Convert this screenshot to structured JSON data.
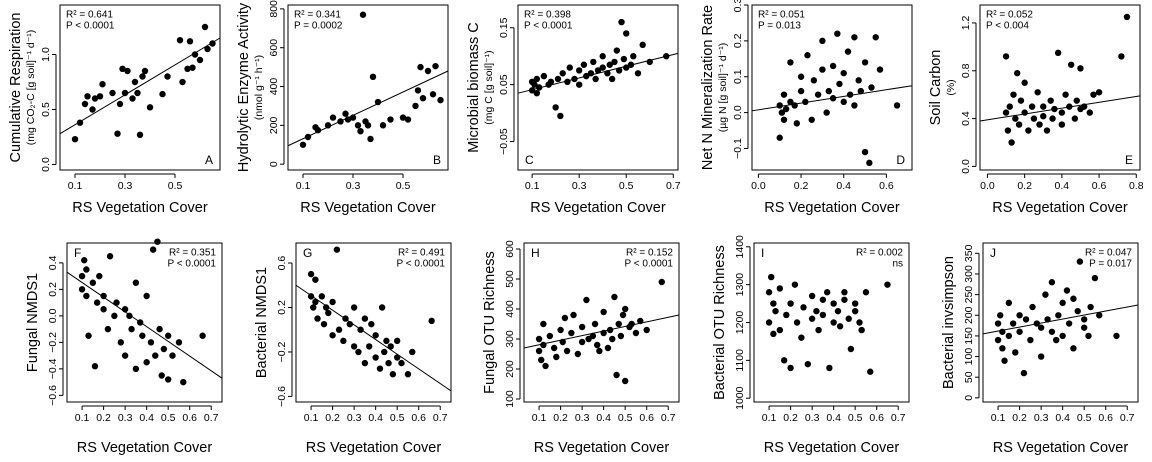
{
  "chart_data": [
    {
      "type": "scatter",
      "panel": "A",
      "stats": [
        "R² = 0.641",
        "P < 0.0001"
      ],
      "stats_corner": "top-left",
      "panel_corner": "bottom-right",
      "ylabel": "Cumulative Respiration",
      "ylabel_units": "(mg CO₂-C [g soil]⁻¹ d⁻¹)",
      "xlabel": "RS Vegetation Cover",
      "color": "#000000",
      "xlim": [
        0.04,
        0.68
      ],
      "ylim": [
        -0.05,
        1.45
      ],
      "xticks": [
        0.1,
        0.3,
        0.5
      ],
      "yticks": [
        {
          "value": 0,
          "label": "0.0"
        },
        0.5,
        {
          "value": 1,
          "label": "1.0"
        }
      ],
      "x": [
        0.1,
        0.12,
        0.14,
        0.15,
        0.17,
        0.18,
        0.2,
        0.21,
        0.25,
        0.27,
        0.28,
        0.29,
        0.3,
        0.31,
        0.33,
        0.34,
        0.35,
        0.36,
        0.37,
        0.38,
        0.4,
        0.45,
        0.47,
        0.52,
        0.53,
        0.55,
        0.56,
        0.57,
        0.58,
        0.6,
        0.62,
        0.63,
        0.65
      ],
      "values": [
        0.23,
        0.38,
        0.55,
        0.62,
        0.5,
        0.6,
        0.62,
        0.73,
        0.65,
        0.28,
        0.55,
        0.87,
        0.65,
        0.85,
        0.6,
        0.75,
        0.65,
        0.27,
        0.8,
        0.85,
        0.52,
        0.64,
        0.8,
        1.13,
        0.75,
        0.87,
        1.12,
        0.88,
        1.0,
        0.95,
        1.25,
        1.05,
        1.1
      ],
      "trend": {
        "x": [
          0.04,
          0.68
        ],
        "y": [
          0.28,
          1.15
        ]
      }
    },
    {
      "type": "scatter",
      "panel": "B",
      "stats": [
        "R² = 0.341",
        "P = 0.0002"
      ],
      "stats_corner": "top-left",
      "panel_corner": "bottom-right",
      "ylabel": "Hydrolytic Enzyme Activity",
      "ylabel_units": "(nmol g⁻¹ h⁻¹)",
      "xlabel": "RS Vegetation Cover",
      "color": "#000000",
      "xlim": [
        0.04,
        0.68
      ],
      "ylim": [
        -30,
        820
      ],
      "xticks": [
        0.1,
        0.3,
        0.5
      ],
      "yticks": [
        0,
        200,
        400,
        600,
        800
      ],
      "x": [
        0.1,
        0.12,
        0.15,
        0.16,
        0.2,
        0.22,
        0.25,
        0.27,
        0.28,
        0.3,
        0.32,
        0.33,
        0.34,
        0.35,
        0.36,
        0.37,
        0.38,
        0.4,
        0.42,
        0.45,
        0.5,
        0.52,
        0.55,
        0.56,
        0.57,
        0.58,
        0.6,
        0.62,
        0.63,
        0.65
      ],
      "values": [
        100,
        140,
        190,
        175,
        200,
        240,
        220,
        260,
        230,
        240,
        200,
        170,
        770,
        220,
        200,
        130,
        450,
        320,
        200,
        230,
        240,
        230,
        300,
        380,
        500,
        340,
        480,
        360,
        505,
        330
      ],
      "trend": {
        "x": [
          0.04,
          0.68
        ],
        "y": [
          95,
          480
        ]
      }
    },
    {
      "type": "scatter",
      "panel": "C",
      "stats": [
        "R² = 0.398",
        "P < 0.0001"
      ],
      "stats_corner": "top-left",
      "panel_corner": "bottom-left",
      "ylabel": "Microbial biomass C",
      "ylabel_units": "(mg C [g soil]⁻¹)",
      "xlabel": "RS Vegetation Cover",
      "color": "#000000",
      "xlim": [
        0.04,
        0.72
      ],
      "ylim": [
        -0.1,
        0.19
      ],
      "xticks": [
        0.1,
        0.3,
        0.5,
        0.7
      ],
      "yticks": [
        {
          "value": -0.05,
          "label": "−0.05"
        },
        0.05,
        0.15
      ],
      "x": [
        0.1,
        0.1,
        0.11,
        0.12,
        0.12,
        0.13,
        0.15,
        0.17,
        0.18,
        0.2,
        0.21,
        0.22,
        0.23,
        0.25,
        0.26,
        0.28,
        0.3,
        0.3,
        0.32,
        0.33,
        0.35,
        0.36,
        0.37,
        0.38,
        0.4,
        0.4,
        0.42,
        0.43,
        0.44,
        0.45,
        0.46,
        0.47,
        0.48,
        0.49,
        0.5,
        0.5,
        0.52,
        0.53,
        0.55,
        0.57,
        0.6,
        0.67
      ],
      "values": [
        0.04,
        0.055,
        0.05,
        0.035,
        0.06,
        0.045,
        0.065,
        0.05,
        0.055,
        0.01,
        0.06,
        -0.005,
        0.07,
        0.055,
        0.08,
        0.06,
        0.075,
        0.05,
        0.085,
        0.065,
        0.07,
        0.09,
        0.06,
        0.075,
        0.08,
        0.1,
        0.07,
        0.085,
        0.06,
        0.09,
        0.11,
        0.075,
        0.16,
        0.095,
        0.14,
        0.08,
        0.085,
        0.1,
        0.07,
        0.12,
        0.09,
        0.1
      ],
      "trend": {
        "x": [
          0.04,
          0.72
        ],
        "y": [
          0.035,
          0.105
        ]
      }
    },
    {
      "type": "scatter",
      "panel": "D",
      "stats": [
        "R² = 0.051",
        "P = 0.013"
      ],
      "stats_corner": "top-left",
      "panel_corner": "bottom-right",
      "ylabel": "Net N Mineralization Rate",
      "ylabel_units": "(µg N [g soil]⁻¹ d⁻¹)",
      "xlabel": "RS Vegetation Cover",
      "color": "#000000",
      "xlim": [
        -0.03,
        0.72
      ],
      "ylim": [
        -0.16,
        0.3
      ],
      "xticks": [
        {
          "value": 0,
          "label": "0.0"
        },
        0.2,
        0.4,
        0.6
      ],
      "yticks": [
        {
          "value": -0.1,
          "label": "−0.1"
        },
        {
          "value": 0,
          "label": "0.0"
        },
        0.1,
        0.2,
        0.3
      ],
      "x": [
        0.1,
        0.1,
        0.11,
        0.12,
        0.12,
        0.13,
        0.15,
        0.15,
        0.17,
        0.18,
        0.2,
        0.2,
        0.22,
        0.23,
        0.25,
        0.26,
        0.28,
        0.3,
        0.3,
        0.32,
        0.33,
        0.35,
        0.35,
        0.37,
        0.38,
        0.4,
        0.4,
        0.42,
        0.43,
        0.45,
        0.45,
        0.47,
        0.48,
        0.5,
        0.5,
        0.52,
        0.53,
        0.55,
        0.57,
        0.65
      ],
      "values": [
        0.02,
        -0.07,
        0.0,
        0.05,
        -0.02,
        0.01,
        0.03,
        0.14,
        0.02,
        -0.03,
        0.06,
        0.1,
        0.03,
        0.16,
        -0.02,
        0.09,
        0.05,
        0.2,
        0.12,
        0.0,
        0.06,
        0.13,
        0.04,
        0.22,
        0.08,
        0.03,
        0.11,
        0.17,
        0.05,
        0.21,
        0.02,
        0.09,
        0.06,
        -0.11,
        0.14,
        -0.14,
        0.07,
        0.21,
        0.12,
        0.02
      ],
      "trend": {
        "x": [
          -0.03,
          0.72
        ],
        "y": [
          0.005,
          0.075
        ]
      }
    },
    {
      "type": "scatter",
      "panel": "E",
      "stats": [
        "R² = 0.052",
        "P < 0.004"
      ],
      "stats_corner": "top-left",
      "panel_corner": "bottom-right",
      "ylabel": "Soil Carbon",
      "ylabel_units": "(%)",
      "xlabel": "RS Vegetation Cover",
      "color": "#000000",
      "xlim": [
        -0.04,
        0.82
      ],
      "ylim": [
        -0.03,
        1.35
      ],
      "xticks": [
        {
          "value": 0,
          "label": "0.0"
        },
        0.2,
        0.4,
        0.6,
        0.8
      ],
      "yticks": [
        {
          "value": 0,
          "label": "0.0"
        },
        0.4,
        0.8,
        1.2
      ],
      "x": [
        0.1,
        0.1,
        0.11,
        0.12,
        0.13,
        0.14,
        0.15,
        0.16,
        0.17,
        0.18,
        0.2,
        0.2,
        0.22,
        0.24,
        0.25,
        0.27,
        0.28,
        0.3,
        0.3,
        0.32,
        0.34,
        0.35,
        0.36,
        0.38,
        0.4,
        0.4,
        0.42,
        0.44,
        0.45,
        0.47,
        0.48,
        0.5,
        0.5,
        0.52,
        0.55,
        0.57,
        0.6,
        0.72,
        0.75
      ],
      "values": [
        0.45,
        0.92,
        0.3,
        0.5,
        0.2,
        0.6,
        0.4,
        0.78,
        0.35,
        0.55,
        0.45,
        0.7,
        0.3,
        0.5,
        0.4,
        0.62,
        0.35,
        0.5,
        0.42,
        0.3,
        0.55,
        0.4,
        0.48,
        0.95,
        0.45,
        0.35,
        0.6,
        0.5,
        0.85,
        0.4,
        0.55,
        0.48,
        0.82,
        0.5,
        0.45,
        0.6,
        0.62,
        0.92,
        1.25
      ],
      "trend": {
        "x": [
          -0.04,
          0.82
        ],
        "y": [
          0.38,
          0.59
        ]
      }
    },
    {
      "type": "scatter",
      "panel": "F",
      "stats": [
        "R² = 0.351",
        "P < 0.0001"
      ],
      "stats_corner": "top-right",
      "panel_corner": "top-left",
      "ylabel": "Fungal NMDS1",
      "xlabel": "RS Vegetation Cover",
      "color": "#000000",
      "xlim": [
        0.03,
        0.75
      ],
      "ylim": [
        -0.65,
        0.55
      ],
      "xticks": [
        0.1,
        0.2,
        0.3,
        0.4,
        0.5,
        0.6,
        0.7
      ],
      "yticks": [
        {
          "value": -0.6,
          "label": "−0.6"
        },
        {
          "value": -0.4,
          "label": "−0.4"
        },
        {
          "value": -0.2,
          "label": "−0.2"
        },
        {
          "value": 0,
          "label": "0.0"
        },
        0.2,
        0.4
      ],
      "x": [
        0.1,
        0.1,
        0.11,
        0.12,
        0.12,
        0.13,
        0.15,
        0.16,
        0.17,
        0.18,
        0.2,
        0.2,
        0.22,
        0.23,
        0.25,
        0.26,
        0.28,
        0.3,
        0.3,
        0.32,
        0.33,
        0.35,
        0.35,
        0.37,
        0.38,
        0.4,
        0.4,
        0.42,
        0.43,
        0.44,
        0.45,
        0.46,
        0.47,
        0.48,
        0.5,
        0.5,
        0.52,
        0.55,
        0.57,
        0.66
      ],
      "values": [
        0.3,
        0.2,
        0.42,
        0.35,
        0.15,
        -0.15,
        0.25,
        -0.38,
        0.1,
        0.3,
        0.05,
        0.15,
        -0.1,
        0.45,
        0.0,
        0.1,
        -0.2,
        0.05,
        -0.3,
        0.0,
        -0.1,
        0.25,
        -0.4,
        -0.05,
        -0.15,
        0.15,
        -0.35,
        -0.2,
        0.5,
        -0.3,
        0.56,
        -0.1,
        -0.45,
        -0.25,
        -0.15,
        -0.48,
        -0.3,
        -0.2,
        -0.5,
        -0.15
      ],
      "trend": {
        "x": [
          0.03,
          0.75
        ],
        "y": [
          0.33,
          -0.47
        ]
      }
    },
    {
      "type": "scatter",
      "panel": "G",
      "stats": [
        "R² = 0.491",
        "P < 0.0001"
      ],
      "stats_corner": "top-right",
      "panel_corner": "top-left",
      "ylabel": "Bacterial NMDS1",
      "xlabel": "RS Vegetation Cover",
      "color": "#000000",
      "xlim": [
        0.03,
        0.75
      ],
      "ylim": [
        -0.65,
        0.78
      ],
      "xticks": [
        0.1,
        0.2,
        0.3,
        0.4,
        0.5,
        0.6,
        0.7
      ],
      "yticks": [
        {
          "value": -0.6,
          "label": "−0.6"
        },
        {
          "value": -0.2,
          "label": "−0.2"
        },
        0.2,
        0.6
      ],
      "x": [
        0.1,
        0.1,
        0.11,
        0.12,
        0.12,
        0.13,
        0.15,
        0.16,
        0.17,
        0.18,
        0.2,
        0.2,
        0.22,
        0.23,
        0.25,
        0.26,
        0.28,
        0.3,
        0.3,
        0.32,
        0.33,
        0.35,
        0.35,
        0.37,
        0.38,
        0.4,
        0.4,
        0.42,
        0.43,
        0.44,
        0.45,
        0.46,
        0.47,
        0.48,
        0.5,
        0.5,
        0.52,
        0.55,
        0.57,
        0.66
      ],
      "values": [
        0.3,
        0.5,
        0.2,
        0.25,
        0.45,
        0.1,
        0.3,
        0.05,
        0.2,
        0.15,
        -0.05,
        0.25,
        0.72,
        0.0,
        -0.1,
        0.1,
        0.05,
        -0.15,
        0.2,
        -0.2,
        0.0,
        -0.3,
        0.1,
        -0.15,
        0.05,
        -0.25,
        -0.05,
        -0.35,
        0.2,
        -0.2,
        -0.1,
        -0.3,
        -0.15,
        -0.4,
        -0.25,
        -0.1,
        -0.3,
        -0.4,
        -0.2,
        0.08
      ],
      "trend": {
        "x": [
          0.03,
          0.75
        ],
        "y": [
          0.4,
          -0.55
        ]
      }
    },
    {
      "type": "scatter",
      "panel": "H",
      "stats": [
        "R² = 0.152",
        "P < 0.0001"
      ],
      "stats_corner": "top-right",
      "panel_corner": "top-left",
      "ylabel": "Fungal OTU Richness",
      "xlabel": "RS Vegetation Cover",
      "color": "#000000",
      "xlim": [
        0.03,
        0.75
      ],
      "ylim": [
        90,
        620
      ],
      "xticks": [
        0.1,
        0.2,
        0.3,
        0.4,
        0.5,
        0.6,
        0.7
      ],
      "yticks": [
        100,
        200,
        300,
        400,
        500,
        600
      ],
      "x": [
        0.1,
        0.1,
        0.11,
        0.12,
        0.12,
        0.13,
        0.15,
        0.17,
        0.18,
        0.2,
        0.21,
        0.22,
        0.23,
        0.25,
        0.26,
        0.28,
        0.3,
        0.3,
        0.32,
        0.33,
        0.35,
        0.36,
        0.37,
        0.38,
        0.4,
        0.4,
        0.42,
        0.43,
        0.44,
        0.45,
        0.46,
        0.47,
        0.48,
        0.49,
        0.5,
        0.5,
        0.52,
        0.53,
        0.55,
        0.57,
        0.6,
        0.67
      ],
      "values": [
        260,
        300,
        230,
        350,
        280,
        210,
        310,
        270,
        240,
        330,
        290,
        370,
        260,
        320,
        380,
        250,
        340,
        290,
        430,
        300,
        310,
        350,
        280,
        260,
        320,
        390,
        270,
        330,
        300,
        440,
        180,
        350,
        310,
        380,
        400,
        160,
        340,
        350,
        320,
        360,
        330,
        490
      ],
      "trend": {
        "x": [
          0.03,
          0.75
        ],
        "y": [
          270,
          380
        ]
      }
    },
    {
      "type": "scatter",
      "panel": "I",
      "stats": [
        "R² = 0.002",
        "ns"
      ],
      "stats_corner": "top-right",
      "panel_corner": "top-left",
      "ylabel": "Bacterial OTU Richness",
      "xlabel": "RS Vegetation Cover",
      "color": "#000000",
      "xlim": [
        0.03,
        0.75
      ],
      "ylim": [
        990,
        1410
      ],
      "xticks": [
        0.1,
        0.2,
        0.3,
        0.4,
        0.5,
        0.6,
        0.7
      ],
      "yticks": [
        1000,
        1100,
        1200,
        1300,
        1400
      ],
      "x": [
        0.1,
        0.1,
        0.11,
        0.12,
        0.12,
        0.13,
        0.15,
        0.15,
        0.17,
        0.18,
        0.2,
        0.2,
        0.22,
        0.23,
        0.25,
        0.26,
        0.28,
        0.3,
        0.3,
        0.32,
        0.33,
        0.35,
        0.35,
        0.37,
        0.38,
        0.4,
        0.4,
        0.42,
        0.43,
        0.45,
        0.45,
        0.47,
        0.48,
        0.5,
        0.5,
        0.52,
        0.53,
        0.55,
        0.57,
        0.65
      ],
      "values": [
        1280,
        1200,
        1320,
        1170,
        1250,
        1230,
        1180,
        1290,
        1100,
        1220,
        1250,
        1080,
        1300,
        1200,
        1160,
        1240,
        1090,
        1270,
        1210,
        1230,
        1180,
        1260,
        1220,
        1280,
        1080,
        1250,
        1200,
        1230,
        1190,
        1260,
        1280,
        1210,
        1130,
        1250,
        1230,
        1200,
        1180,
        1280,
        1070,
        1300
      ]
    },
    {
      "type": "scatter",
      "panel": "J",
      "stats": [
        "R² = 0.047",
        "P = 0.017"
      ],
      "stats_corner": "top-right",
      "panel_corner": "top-left",
      "ylabel": "Bacterial invsimpson",
      "xlabel": "RS Vegetation Cover",
      "color": "#000000",
      "xlim": [
        0.03,
        0.75
      ],
      "ylim": [
        -10,
        375
      ],
      "xticks": [
        0.1,
        0.2,
        0.3,
        0.4,
        0.5,
        0.6,
        0.7
      ],
      "yticks": [
        0,
        50,
        100,
        150,
        200,
        250,
        300,
        350
      ],
      "x": [
        0.1,
        0.1,
        0.11,
        0.12,
        0.12,
        0.13,
        0.15,
        0.15,
        0.17,
        0.18,
        0.2,
        0.2,
        0.22,
        0.23,
        0.25,
        0.26,
        0.28,
        0.3,
        0.3,
        0.32,
        0.33,
        0.35,
        0.35,
        0.37,
        0.38,
        0.4,
        0.4,
        0.42,
        0.43,
        0.45,
        0.45,
        0.47,
        0.48,
        0.5,
        0.5,
        0.52,
        0.53,
        0.55,
        0.57,
        0.65
      ],
      "values": [
        180,
        140,
        200,
        120,
        160,
        90,
        230,
        150,
        180,
        110,
        200,
        160,
        60,
        190,
        140,
        220,
        180,
        100,
        170,
        250,
        190,
        160,
        280,
        140,
        200,
        230,
        150,
        260,
        180,
        120,
        240,
        210,
        330,
        190,
        170,
        150,
        220,
        290,
        200,
        150
      ],
      "trend": {
        "x": [
          0.03,
          0.75
        ],
        "y": [
          155,
          225
        ]
      }
    }
  ]
}
